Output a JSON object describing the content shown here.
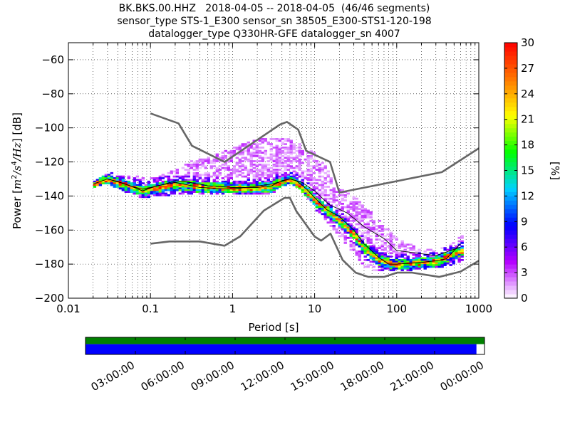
{
  "chart_data": [
    {
      "type": "heatmap",
      "title_lines": [
        "BK.BKS.00.HHZ   2018-04-05 -- 2018-04-05  (46/46 segments)",
        "sensor_type STS-1_E300 sensor_sn 38505_E300-STS1-120-198",
        "datalogger_type Q330HR-GFE datalogger_sn 4007"
      ],
      "xlabel": "Period [s]",
      "ylabel": "Power [m²/s⁴/Hz] [dB]",
      "ylabel_parts": {
        "pre": "Power [",
        "m": "m",
        "exp2": "2",
        "s": "/s",
        "exp4": "4",
        "hz": "/Hz",
        "post": "] [dB]"
      },
      "x_scale": "log",
      "xlim": [
        0.01,
        1000
      ],
      "ylim": [
        -200,
        -50
      ],
      "x_ticks": [
        0.01,
        0.1,
        1,
        10,
        100,
        1000
      ],
      "x_tick_labels": [
        "0.01",
        "0.1",
        "1",
        "10",
        "100",
        "1000"
      ],
      "y_ticks": [
        -200,
        -180,
        -160,
        -140,
        -120,
        -100,
        -80,
        -60
      ],
      "y_tick_labels": [
        "−200",
        "−180",
        "−160",
        "−140",
        "−120",
        "−100",
        "−80",
        "−60"
      ],
      "grid": true,
      "colorbar": {
        "label": "[%]",
        "range": [
          0,
          30
        ],
        "ticks": [
          0,
          3,
          6,
          9,
          12,
          15,
          18,
          21,
          24,
          27,
          30
        ],
        "tick_labels": [
          "0",
          "3",
          "6",
          "9",
          "12",
          "15",
          "18",
          "21",
          "24",
          "27",
          "30"
        ],
        "colors": [
          "#ffffff",
          "#b400ff",
          "#0000ff",
          "#00d2ff",
          "#00ff00",
          "#ffff00",
          "#ff7800",
          "#ff0000"
        ]
      },
      "noise_models": [
        {
          "name": "NHNM",
          "color": "#666666",
          "points": [
            [
              0.1,
              -91.5
            ],
            [
              0.22,
              -97.4
            ],
            [
              0.32,
              -110.5
            ],
            [
              0.8,
              -120
            ],
            [
              3.8,
              -98
            ],
            [
              4.6,
              -96.5
            ],
            [
              6.3,
              -101
            ],
            [
              7.9,
              -113.5
            ],
            [
              15.4,
              -120
            ],
            [
              20,
              -138
            ],
            [
              354.8,
              -126
            ],
            [
              1000,
              -112
            ]
          ]
        },
        {
          "name": "NLNM",
          "color": "#666666",
          "points": [
            [
              0.1,
              -168
            ],
            [
              0.17,
              -166.7
            ],
            [
              0.4,
              -166.7
            ],
            [
              0.8,
              -169.2
            ],
            [
              1.24,
              -163.7
            ],
            [
              2.4,
              -148.6
            ],
            [
              4.3,
              -141.1
            ],
            [
              5,
              -141.1
            ],
            [
              6,
              -149
            ],
            [
              10,
              -163.8
            ],
            [
              12,
              -166.2
            ],
            [
              15.6,
              -162.1
            ],
            [
              21.9,
              -177.5
            ],
            [
              31.6,
              -185
            ],
            [
              45,
              -187.5
            ],
            [
              70,
              -187.5
            ],
            [
              101,
              -185
            ],
            [
              154,
              -185
            ],
            [
              328,
              -187.5
            ],
            [
              600,
              -184.4
            ],
            [
              1000,
              -178
            ]
          ]
        }
      ],
      "percentile_lines": [
        {
          "name": "",
          "color": "#000000",
          "points": [
            [
              0.02,
              -133
            ],
            [
              0.03,
              -130
            ],
            [
              0.04,
              -131.5
            ],
            [
              0.06,
              -134.5
            ],
            [
              0.08,
              -136
            ],
            [
              0.1,
              -135
            ],
            [
              0.15,
              -133
            ],
            [
              0.2,
              -131
            ],
            [
              0.3,
              -132
            ],
            [
              0.5,
              -134
            ],
            [
              1,
              -135
            ],
            [
              2,
              -135
            ],
            [
              3,
              -134
            ],
            [
              4,
              -131
            ],
            [
              5,
              -130
            ],
            [
              6,
              -131
            ],
            [
              8,
              -136
            ],
            [
              10,
              -141
            ],
            [
              14,
              -148
            ],
            [
              20,
              -152
            ],
            [
              30,
              -160
            ],
            [
              40,
              -168
            ],
            [
              60,
              -176
            ],
            [
              80,
              -180
            ],
            [
              100,
              -180
            ],
            [
              200,
              -179
            ],
            [
              300,
              -178
            ],
            [
              400,
              -177
            ],
            [
              600,
              -168
            ]
          ]
        },
        {
          "name": "",
          "color": "#000000",
          "points": [
            [
              0.03,
              -130
            ],
            [
              0.05,
              -133
            ],
            [
              0.08,
              -137
            ],
            [
              0.12,
              -134
            ],
            [
              0.2,
              -132
            ],
            [
              0.4,
              -135
            ],
            [
              1,
              -136
            ],
            [
              3,
              -133
            ],
            [
              5,
              -130
            ],
            [
              7,
              -132
            ],
            [
              10,
              -137
            ],
            [
              15,
              -145
            ],
            [
              25,
              -150
            ],
            [
              40,
              -158
            ],
            [
              70,
              -165
            ],
            [
              100,
              -172
            ],
            [
              300,
              -175
            ],
            [
              600,
              -170
            ]
          ]
        }
      ],
      "density_lower_envelope": [
        [
          0.02,
          -133.5
        ],
        [
          0.03,
          -131
        ],
        [
          0.04,
          -134
        ],
        [
          0.06,
          -138
        ],
        [
          0.08,
          -140
        ],
        [
          0.1,
          -139
        ],
        [
          0.2,
          -138
        ],
        [
          0.5,
          -138
        ],
        [
          1,
          -138
        ],
        [
          2,
          -138
        ],
        [
          3,
          -137
        ],
        [
          4,
          -133
        ],
        [
          5,
          -131
        ],
        [
          6,
          -133
        ],
        [
          8,
          -139
        ],
        [
          10,
          -146
        ],
        [
          15,
          -155
        ],
        [
          20,
          -162
        ],
        [
          30,
          -172
        ],
        [
          40,
          -180
        ],
        [
          50,
          -183
        ],
        [
          80,
          -183
        ],
        [
          150,
          -182
        ],
        [
          300,
          -181
        ],
        [
          400,
          -180
        ],
        [
          600,
          -177
        ]
      ],
      "density_upper_envelope": [
        [
          0.02,
          -132.5
        ],
        [
          0.03,
          -126
        ],
        [
          0.05,
          -128
        ],
        [
          0.1,
          -130
        ],
        [
          0.2,
          -125
        ],
        [
          0.3,
          -120
        ],
        [
          0.5,
          -118
        ],
        [
          1,
          -112
        ],
        [
          2,
          -107
        ],
        [
          3,
          -106
        ],
        [
          5,
          -107
        ],
        [
          8,
          -112
        ],
        [
          10,
          -115
        ],
        [
          15,
          -125
        ],
        [
          20,
          -135
        ],
        [
          30,
          -140
        ],
        [
          50,
          -150
        ],
        [
          80,
          -160
        ],
        [
          100,
          -165
        ],
        [
          200,
          -172
        ],
        [
          400,
          -170
        ],
        [
          600,
          -163
        ]
      ],
      "density_mode": [
        [
          0.02,
          -133
        ],
        [
          0.03,
          -130
        ],
        [
          0.05,
          -133
        ],
        [
          0.08,
          -136.5
        ],
        [
          0.1,
          -135.5
        ],
        [
          0.2,
          -133
        ],
        [
          0.5,
          -134.5
        ],
        [
          1,
          -135
        ],
        [
          2,
          -135
        ],
        [
          3,
          -134
        ],
        [
          4,
          -131.5
        ],
        [
          5,
          -130.5
        ],
        [
          6,
          -132
        ],
        [
          8,
          -137
        ],
        [
          10,
          -142
        ],
        [
          15,
          -149
        ],
        [
          20,
          -154
        ],
        [
          30,
          -162
        ],
        [
          40,
          -170
        ],
        [
          60,
          -177
        ],
        [
          100,
          -180
        ],
        [
          300,
          -178
        ],
        [
          600,
          -172
        ]
      ],
      "time_axis": {
        "tick_labels": [
          "03:00:00",
          "06:00:00",
          "09:00:00",
          "12:00:00",
          "15:00:00",
          "18:00:00",
          "21:00:00",
          "00:00:00"
        ],
        "colors": {
          "data": "#008000",
          "segments": "#0000ff",
          "gap": "#ffffff"
        },
        "data_coverage": 1.0,
        "segment_coverage": 0.98
      }
    }
  ]
}
